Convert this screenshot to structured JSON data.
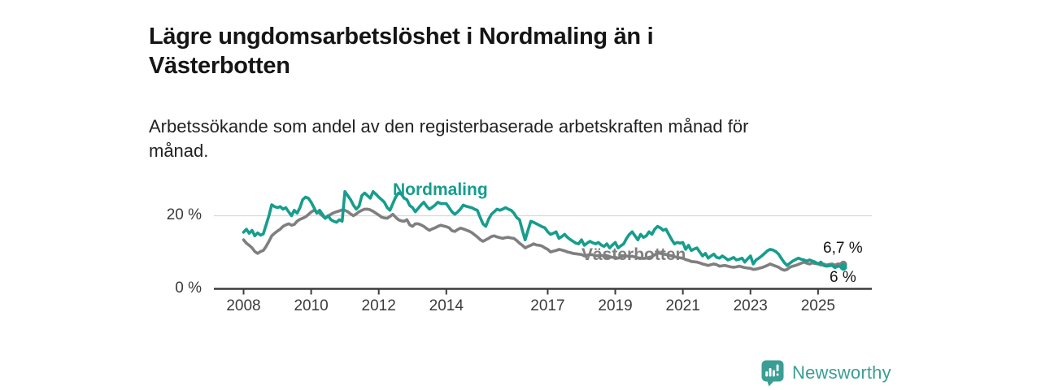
{
  "title_lines": [
    "Lägre ungdomsarbetslöshet i Nordmaling än i",
    "Västerbotten"
  ],
  "subtitle_lines": [
    "Arbetssökande som andel av den registerbaserade arbetskraften månad för",
    "månad."
  ],
  "brand": {
    "name": "Newsworthy",
    "color": "#3a9e94"
  },
  "chart_data": {
    "type": "line",
    "unit": "%",
    "x_start": {
      "year": 2008,
      "month": 1
    },
    "x_interval": "monthly",
    "x_ticks": [
      "2008",
      "2010",
      "2012",
      "2014",
      "2017",
      "2019",
      "2021",
      "2023",
      "2025"
    ],
    "y_ticks": [
      "0 %",
      "20 %"
    ],
    "ylim": [
      0,
      28
    ],
    "grid_lines_at": [
      20
    ],
    "legend_position": "inline-labels",
    "series": [
      {
        "name": "Nordmaling",
        "color": "#169d8d",
        "end_label": "6 %",
        "end_value": 6.0,
        "values": [
          15.5,
          16.3,
          15.2,
          16.0,
          14.5,
          15.3,
          14.7,
          15.0,
          17.5,
          20.0,
          23.0,
          22.5,
          22.2,
          22.5,
          21.8,
          22.2,
          21.1,
          20.0,
          21.5,
          20.7,
          22.2,
          24.4,
          25.1,
          24.8,
          23.7,
          22.2,
          20.7,
          21.5,
          20.4,
          19.3,
          20.0,
          18.9,
          18.5,
          18.2,
          18.9,
          18.5,
          26.6,
          25.5,
          24.4,
          22.9,
          21.8,
          22.6,
          25.5,
          26.2,
          25.5,
          24.8,
          26.6,
          25.9,
          25.1,
          24.4,
          23.7,
          22.2,
          21.5,
          23.3,
          25.1,
          26.2,
          25.9,
          24.8,
          24.4,
          22.8,
          22.2,
          21.1,
          22.0,
          22.9,
          23.7,
          22.6,
          21.8,
          22.3,
          22.9,
          23.7,
          23.3,
          23.3,
          23.3,
          22.2,
          21.1,
          20.4,
          21.0,
          21.8,
          22.9,
          22.6,
          22.4,
          22.2,
          21.8,
          21.5,
          19.6,
          17.8,
          17.1,
          19.0,
          20.4,
          21.1,
          21.8,
          21.5,
          21.8,
          22.2,
          21.8,
          21.5,
          20.7,
          19.5,
          18.9,
          16.0,
          13.4,
          16.0,
          18.5,
          18.2,
          17.8,
          17.4,
          17.0,
          16.7,
          15.6,
          14.9,
          15.2,
          15.6,
          13.8,
          14.3,
          14.9,
          14.1,
          13.5,
          13.0,
          12.5,
          12.3,
          13.4,
          11.9,
          12.5,
          13.0,
          12.6,
          12.3,
          12.7,
          12.0,
          11.6,
          12.3,
          11.2,
          12.0,
          12.7,
          11.2,
          11.8,
          12.3,
          13.8,
          14.9,
          15.6,
          14.5,
          13.4,
          14.9,
          14.1,
          14.5,
          15.6,
          14.9,
          16.3,
          17.1,
          16.7,
          16.0,
          16.3,
          14.9,
          13.5,
          12.3,
          12.7,
          12.5,
          12.7,
          10.8,
          11.9,
          10.5,
          10.9,
          11.2,
          10.1,
          9.0,
          9.7,
          8.4,
          9.0,
          9.5,
          8.6,
          8.4,
          9.0,
          8.5,
          7.9,
          8.2,
          8.6,
          7.9,
          8.1,
          8.4,
          7.3,
          8.2,
          9.0,
          6.8,
          7.9,
          8.4,
          9.0,
          9.7,
          10.4,
          10.8,
          10.6,
          10.2,
          9.5,
          8.3,
          7.2,
          6.4,
          7.0,
          7.6,
          8.0,
          8.4,
          8.1,
          7.9,
          7.6,
          7.9,
          7.6,
          7.3,
          6.8,
          7.3,
          6.4,
          6.2,
          6.3,
          6.4,
          5.8,
          6.2,
          6.1,
          6.0
        ]
      },
      {
        "name": "Västerbotten",
        "color": "#7f7f7f",
        "end_label": "6,7 %",
        "end_value": 6.7,
        "values": [
          13.4,
          12.5,
          11.9,
          11.2,
          10.2,
          9.7,
          10.2,
          10.5,
          11.6,
          13.0,
          14.5,
          15.2,
          15.8,
          16.3,
          17.1,
          17.5,
          17.8,
          17.4,
          17.6,
          18.5,
          19.0,
          19.3,
          19.7,
          20.3,
          21.0,
          21.5,
          21.1,
          20.7,
          20.0,
          19.3,
          19.8,
          20.4,
          20.8,
          21.1,
          21.3,
          21.6,
          21.5,
          21.1,
          20.5,
          20.0,
          20.5,
          21.1,
          21.5,
          21.8,
          21.8,
          21.6,
          21.2,
          20.7,
          20.2,
          19.6,
          19.4,
          19.3,
          19.8,
          20.4,
          19.6,
          18.9,
          18.6,
          18.5,
          18.9,
          17.5,
          17.1,
          17.8,
          17.8,
          17.5,
          17.1,
          16.5,
          16.0,
          16.4,
          16.7,
          17.1,
          17.4,
          17.2,
          17.0,
          16.7,
          15.9,
          15.7,
          16.2,
          16.6,
          16.4,
          16.1,
          15.8,
          15.4,
          14.8,
          14.2,
          13.5,
          13.0,
          13.4,
          13.8,
          14.3,
          14.5,
          14.2,
          14.0,
          13.8,
          14.0,
          14.1,
          13.9,
          13.8,
          13.2,
          12.5,
          11.9,
          11.2,
          11.6,
          11.9,
          12.3,
          12.0,
          11.9,
          11.7,
          11.2,
          10.8,
          10.1,
          10.3,
          10.5,
          10.8,
          10.6,
          10.4,
          10.1,
          9.9,
          9.7,
          9.6,
          9.5,
          9.4,
          9.0,
          9.2,
          9.4,
          9.3,
          9.1,
          9.0,
          9.2,
          8.9,
          8.7,
          8.8,
          8.6,
          8.6,
          8.4,
          8.7,
          8.9,
          9.0,
          8.8,
          8.9,
          8.7,
          8.5,
          8.4,
          8.3,
          8.4,
          8.6,
          8.8,
          9.3,
          9.8,
          9.7,
          9.5,
          9.4,
          9.2,
          9.0,
          8.8,
          8.6,
          8.5,
          8.4,
          8.0,
          7.8,
          7.5,
          7.4,
          7.3,
          7.1,
          6.8,
          6.6,
          6.4,
          6.6,
          6.8,
          6.6,
          6.2,
          6.3,
          6.4,
          6.2,
          6.0,
          5.9,
          6.0,
          6.2,
          6.0,
          5.8,
          5.7,
          5.6,
          5.3,
          5.4,
          5.6,
          5.8,
          6.1,
          6.4,
          6.8,
          6.5,
          6.2,
          5.9,
          5.4,
          5.1,
          5.3,
          5.9,
          6.2,
          6.4,
          6.7,
          7.0,
          7.3,
          7.0,
          6.8,
          7.1,
          6.9,
          6.9,
          6.5,
          6.8,
          6.5,
          6.7,
          6.8,
          6.5,
          6.8,
          6.8,
          6.7
        ]
      }
    ]
  }
}
